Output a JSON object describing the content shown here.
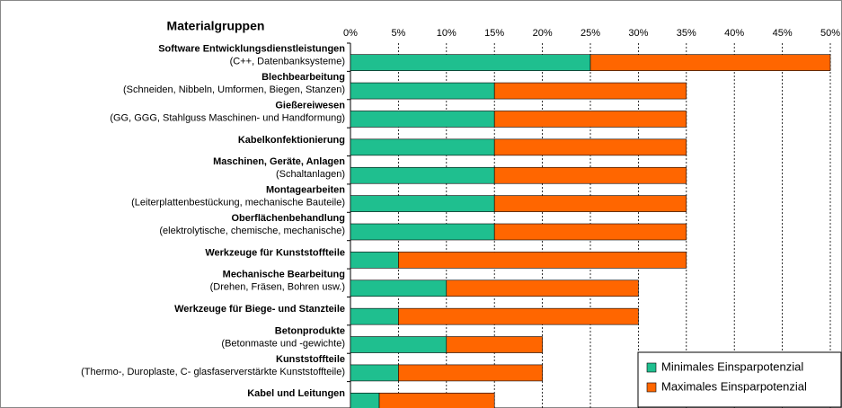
{
  "chart_data": {
    "type": "stacked_barh",
    "title": "Materialgruppen",
    "categories": [
      "Software Entwicklungsdienstleistungen",
      "Blechbearbeitung",
      "Gießereiwesen",
      "Kabelkonfektionierung",
      "Maschinen, Geräte, Anlagen",
      "Montagearbeiten",
      "Oberflächenbehandlung",
      "Werkzeuge für Kunststoffteile",
      "Mechanische Bearbeitung",
      "Werkzeuge für Biege- und Stanzteile",
      "Betonprodukte",
      "Kunststoffteile",
      "Kabel und Leitungen"
    ],
    "category_details": [
      "(C++, Datenbanksysteme)",
      "(Schneiden, Nibbeln, Umformen, Biegen, Stanzen)",
      "(GG, GGG, Stahlguss Maschinen- und Handformung)",
      null,
      "(Schaltanlagen)",
      "(Leiterplattenbestückung, mechanische Bauteile)",
      "(elektrolytische, chemische, mechanische)",
      null,
      "(Drehen, Fräsen,  Bohren usw.)",
      null,
      "(Betonmaste und -gewichte)",
      "(Thermo-, Duroplaste, C- glasfaserverstärkte Kunststoffteile)",
      null
    ],
    "series": [
      {
        "name": "Minimales Einsparpotenzial",
        "color": "#1fbf8f",
        "values": [
          25,
          15,
          15,
          15,
          15,
          15,
          15,
          5,
          10,
          5,
          10,
          5,
          3
        ]
      },
      {
        "name": "Maximales Einsparpotenzial",
        "color": "#ff6600",
        "values": [
          25,
          20,
          20,
          20,
          20,
          20,
          20,
          30,
          20,
          25,
          10,
          15,
          12
        ]
      }
    ],
    "xlim": [
      0,
      50
    ],
    "xticks": [
      {
        "value": 0,
        "label": "0%"
      },
      {
        "value": 5,
        "label": "5%"
      },
      {
        "value": 10,
        "label": "10%"
      },
      {
        "value": 15,
        "label": "15%"
      },
      {
        "value": 20,
        "label": "20%"
      },
      {
        "value": 25,
        "label": "25%"
      },
      {
        "value": 30,
        "label": "30%"
      },
      {
        "value": 35,
        "label": "35%"
      },
      {
        "value": 40,
        "label": "40%"
      },
      {
        "value": 45,
        "label": "45%"
      },
      {
        "value": 50,
        "label": "50%"
      }
    ],
    "grid": true,
    "legend": "lower right"
  }
}
